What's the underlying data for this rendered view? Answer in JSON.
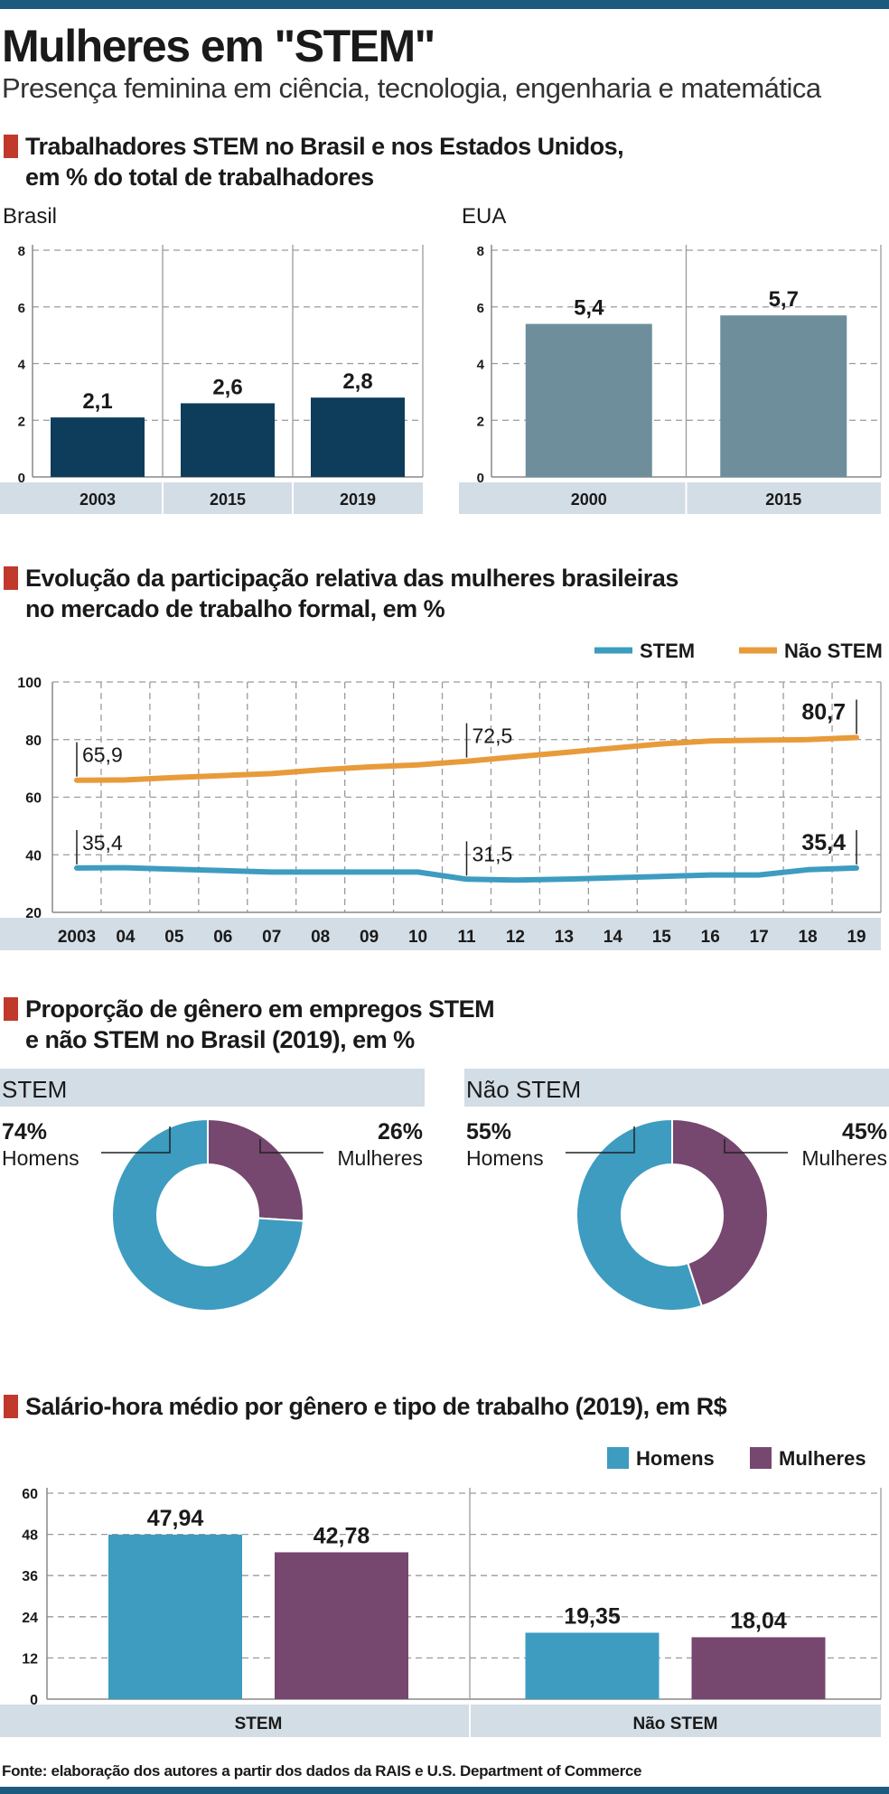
{
  "header": {
    "title": "Mulheres em \"STEM\"",
    "subtitle": "Presença feminina em ciência, tecnologia, engenharia e matemática"
  },
  "sections": {
    "s1": {
      "line1": "Trabalhadores STEM no Brasil e nos Estados Unidos,",
      "line2": "em % do total de trabalhadores"
    },
    "s2": {
      "line1": "Evolução da participação relativa das mulheres brasileiras",
      "line2": "no mercado de trabalho formal, em %"
    },
    "s3": {
      "line1": "Proporção de gênero em empregos STEM",
      "line2": "e não STEM no Brasil (2019), em %"
    },
    "s4": {
      "line1": "Salário-hora médio por gênero e tipo de trabalho (2019), em R$"
    }
  },
  "colors": {
    "brasil_bar": "#0e3d5c",
    "eua_bar": "#6e8e9c",
    "stem_line": "#3d9cc0",
    "nao_stem_line": "#e89b3a",
    "homens": "#3d9cc0",
    "mulheres": "#76476f",
    "axis_band": "#d3dde5",
    "accent": "#c0392b"
  },
  "chart_data": [
    {
      "type": "bar",
      "title": "Brasil",
      "categories": [
        "2003",
        "2015",
        "2019"
      ],
      "values": [
        2.1,
        2.6,
        2.8
      ],
      "value_labels": [
        "2,1",
        "2,6",
        "2,8"
      ],
      "ylim": [
        0,
        8
      ],
      "yticks": [
        "0",
        "2",
        "4",
        "6",
        "8"
      ],
      "grid": true
    },
    {
      "type": "bar",
      "title": "EUA",
      "categories": [
        "2000",
        "2015"
      ],
      "values": [
        5.4,
        5.7
      ],
      "value_labels": [
        "5,4",
        "5,7"
      ],
      "ylim": [
        0,
        8
      ],
      "yticks": [
        "0",
        "2",
        "4",
        "6",
        "8"
      ],
      "grid": true
    },
    {
      "type": "line",
      "x": [
        "2003",
        "04",
        "05",
        "06",
        "07",
        "08",
        "09",
        "10",
        "11",
        "12",
        "13",
        "14",
        "15",
        "16",
        "17",
        "18",
        "19"
      ],
      "ylim": [
        20,
        100
      ],
      "yticks": [
        "20",
        "40",
        "60",
        "80",
        "100"
      ],
      "legend": "top-right",
      "series": [
        {
          "name": "STEM",
          "values": [
            35.4,
            35.5,
            35.0,
            34.5,
            34.0,
            34.0,
            34.0,
            34.0,
            31.5,
            31.2,
            31.5,
            32.0,
            32.5,
            33.0,
            33.0,
            34.8,
            35.4
          ],
          "annotations": [
            {
              "index": 0,
              "label": "35,4"
            },
            {
              "index": 8,
              "label": "31,5"
            },
            {
              "index": 16,
              "label": "35,4"
            }
          ]
        },
        {
          "name": "Não STEM",
          "values": [
            65.9,
            66.0,
            66.8,
            67.5,
            68.2,
            69.5,
            70.5,
            71.2,
            72.5,
            74.0,
            75.5,
            77.0,
            78.5,
            79.5,
            79.8,
            80.0,
            80.7
          ],
          "annotations": [
            {
              "index": 0,
              "label": "65,9"
            },
            {
              "index": 8,
              "label": "72,5"
            },
            {
              "index": 16,
              "label": "80,7"
            }
          ]
        }
      ],
      "grid": true
    },
    {
      "type": "pie",
      "title": "STEM",
      "slices": [
        {
          "label": "Homens",
          "value": 74,
          "value_label": "74%"
        },
        {
          "label": "Mulheres",
          "value": 26,
          "value_label": "26%"
        }
      ]
    },
    {
      "type": "pie",
      "title": "Não STEM",
      "slices": [
        {
          "label": "Homens",
          "value": 55,
          "value_label": "55%"
        },
        {
          "label": "Mulheres",
          "value": 45,
          "value_label": "45%"
        }
      ]
    },
    {
      "type": "bar",
      "categories": [
        "STEM",
        "Não STEM"
      ],
      "legend": "top-right",
      "ylim": [
        0,
        60
      ],
      "yticks": [
        "0",
        "12",
        "24",
        "36",
        "48",
        "60"
      ],
      "series": [
        {
          "name": "Homens",
          "values": [
            47.94,
            19.35
          ],
          "value_labels": [
            "47,94",
            "19,35"
          ]
        },
        {
          "name": "Mulheres",
          "values": [
            42.78,
            18.04
          ],
          "value_labels": [
            "42,78",
            "18,04"
          ]
        }
      ],
      "grid": true
    }
  ],
  "footer": {
    "source": "Fonte: elaboração dos autores a partir dos dados da RAIS e U.S. Department of Commerce"
  }
}
